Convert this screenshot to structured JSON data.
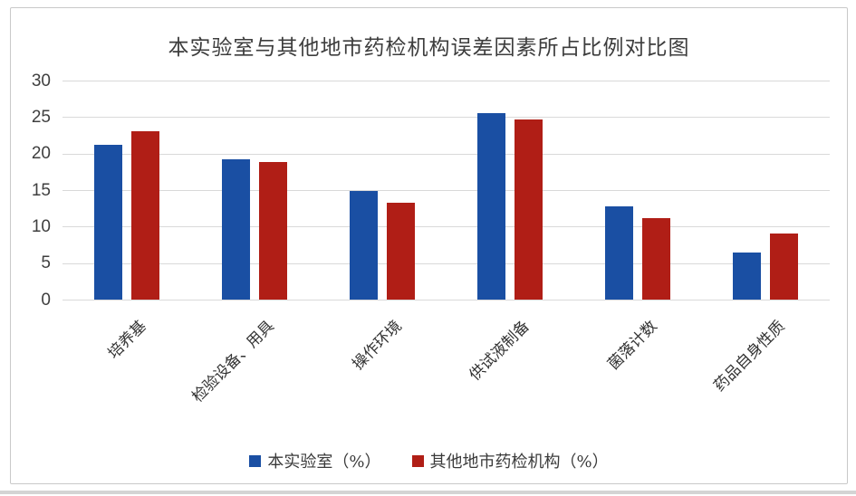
{
  "chart_data": {
    "type": "bar",
    "title": "本实验室与其他地市药检机构误差因素所占比例对比图",
    "categories": [
      "培养基",
      "检验设备、用具",
      "操作环境",
      "供试液制备",
      "菌落计数",
      "药品自身性质"
    ],
    "series": [
      {
        "name": "本实验室（%）",
        "color": "#1a4fa3",
        "values": [
          21.2,
          19.2,
          14.9,
          25.5,
          12.8,
          6.4
        ]
      },
      {
        "name": "其他地市药检机构（%）",
        "color": "#b01e16",
        "values": [
          23.1,
          18.8,
          13.3,
          24.7,
          11.1,
          9.0
        ]
      }
    ],
    "xlabel": "",
    "ylabel": "",
    "ylim": [
      0,
      30
    ],
    "yticks": [
      0,
      5,
      10,
      15,
      20,
      25,
      30
    ],
    "grid": true,
    "legend_position": "bottom",
    "colors": {
      "gridline": "#d9d9d9",
      "axis_text": "#3f3f3f",
      "frame_border": "#c9c9c9"
    }
  }
}
